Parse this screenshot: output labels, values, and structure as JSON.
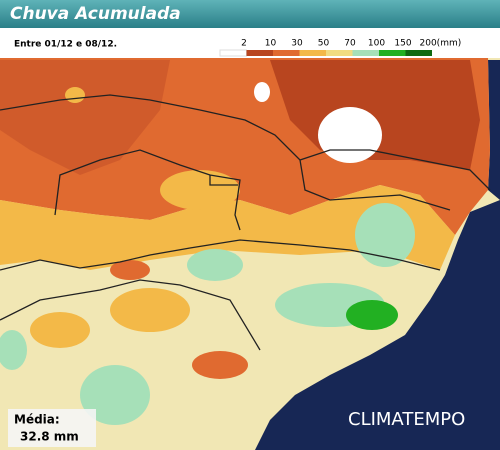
{
  "header": {
    "title": "Chuva Acumulada",
    "subtitle": "Entre 01/12 e 08/12."
  },
  "legend": {
    "labels": [
      "2",
      "10",
      "30",
      "50",
      "70",
      "100",
      "150",
      "200(mm)"
    ],
    "colors": [
      "#ffffff",
      "#b8451f",
      "#e06a30",
      "#f3b948",
      "#f1dc80",
      "#a6e0b8",
      "#22b022",
      "#0e6a12"
    ]
  },
  "average": {
    "label": "Média:",
    "value": "32.8 mm"
  },
  "brand": "CLIMATEMPO"
}
